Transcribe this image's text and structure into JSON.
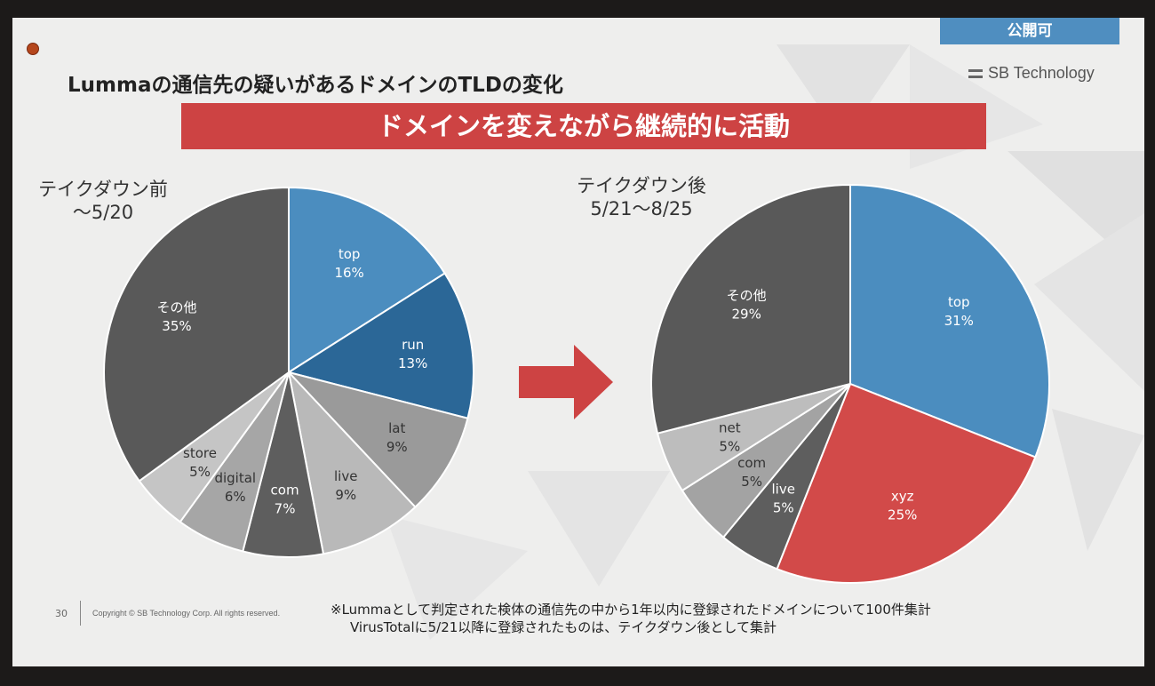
{
  "badge": "公開可",
  "brand": "SB Technology",
  "title": "Lummaの通信先の疑いがあるドメインのTLDの変化",
  "banner": "ドメインを変えながら継続的に活動",
  "footer": {
    "page": "30",
    "copyright": "Copyright © SB Technology Corp. All rights reserved."
  },
  "notes": [
    "※Lummaとして判定された検体の通信先の中から1年以内に登録されたドメインについて100件集計",
    "VirusTotalに5/21以降に登録されたものは、テイクダウン後として集計"
  ],
  "chart_data": [
    {
      "type": "pie",
      "title": "テイクダウン前",
      "subtitle": "～5/20",
      "slices": [
        {
          "label": "top",
          "value": 16,
          "display": "16%",
          "color": "#4b8dbf"
        },
        {
          "label": "run",
          "value": 13,
          "display": "13%",
          "color": "#2b6797"
        },
        {
          "label": "lat",
          "value": 9,
          "display": "9%",
          "color": "#9a9a9a"
        },
        {
          "label": "live",
          "value": 9,
          "display": "9%",
          "color": "#b9b9b9"
        },
        {
          "label": "com",
          "value": 7,
          "display": "7%",
          "color": "#5e5e5e"
        },
        {
          "label": "digital",
          "value": 6,
          "display": "6%",
          "color": "#a6a6a6"
        },
        {
          "label": "store",
          "value": 5,
          "display": "5%",
          "color": "#c5c5c5"
        },
        {
          "label": "その他",
          "value": 35,
          "display": "35%",
          "color": "#595959"
        }
      ]
    },
    {
      "type": "pie",
      "title": "テイクダウン後",
      "subtitle": "5/21～8/25",
      "slices": [
        {
          "label": "top",
          "value": 31,
          "display": "31%",
          "color": "#4b8dbf"
        },
        {
          "label": "xyz",
          "value": 25,
          "display": "25%",
          "color": "#d24a49"
        },
        {
          "label": "live",
          "value": 5,
          "display": "5%",
          "color": "#5e5e5e"
        },
        {
          "label": "com",
          "value": 5,
          "display": "5%",
          "color": "#a3a3a3"
        },
        {
          "label": "net",
          "value": 5,
          "display": "5%",
          "color": "#bdbdbd"
        },
        {
          "label": "その他",
          "value": 29,
          "display": "29%",
          "color": "#595959"
        }
      ]
    }
  ],
  "colors": {
    "banner": "#cd4343",
    "badge": "#4f8ec0",
    "arrow": "#cd4343"
  }
}
